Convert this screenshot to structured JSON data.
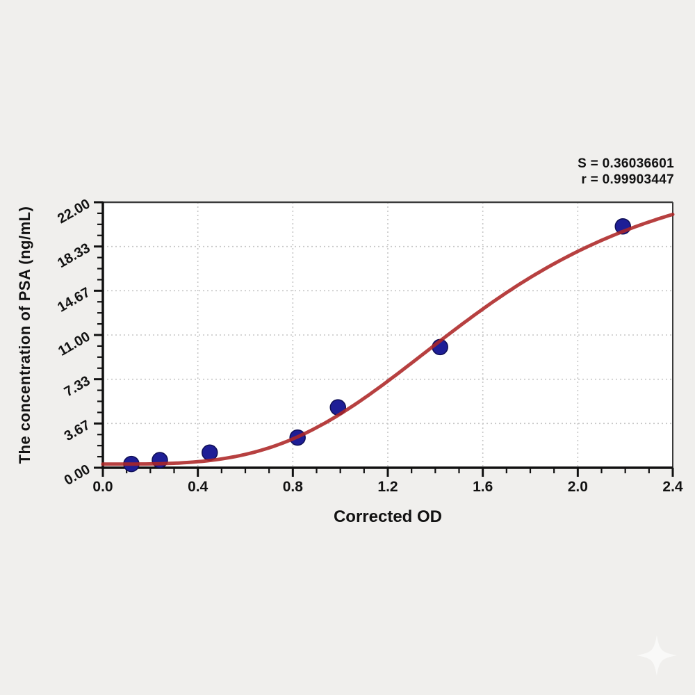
{
  "chart_data": {
    "type": "scatter",
    "title": "",
    "xlabel": "Corrected OD",
    "ylabel": "The concentration of PSA (ng/mL)",
    "xlim": [
      0.0,
      2.4
    ],
    "ylim": [
      0.0,
      22.0
    ],
    "x_tick_labels": [
      "0.0",
      "0.4",
      "0.8",
      "1.2",
      "1.6",
      "2.0",
      "2.4"
    ],
    "y_tick_labels": [
      "0.00",
      "3.67",
      "7.33",
      "11.00",
      "14.67",
      "18.33",
      "22.00"
    ],
    "minor_divisions": 4,
    "grid": {
      "style": "dotted",
      "on_major_ticks": true
    },
    "legend": "none",
    "annotations": [
      {
        "text": "S = 0.36036601"
      },
      {
        "text": "r = 0.99903447"
      }
    ],
    "series": [
      {
        "name": "standard-points",
        "type": "scatter",
        "color": "#1e1e96",
        "points": [
          [
            0.12,
            0.31
          ],
          [
            0.24,
            0.63
          ],
          [
            0.45,
            1.25
          ],
          [
            0.82,
            2.5
          ],
          [
            0.99,
            5.0
          ],
          [
            1.42,
            10.0
          ],
          [
            2.19,
            20.0
          ]
        ]
      },
      {
        "name": "fitted-curve",
        "type": "line",
        "color": "#ad2626",
        "model": "4PL",
        "params": {
          "a": 0.3,
          "b": 3.5,
          "c": 1.6,
          "d": 26.0
        },
        "x_range": [
          0.0,
          2.4
        ]
      }
    ]
  },
  "colors": {
    "background": "#f0efed",
    "plot_bg": "#ffffff",
    "grid": "#c6c6c6",
    "axis": "#111111",
    "frame": "#3a3a3a",
    "tick_label": "#121212",
    "curve": "#ad2626",
    "point": "#1e1e96",
    "point_outline": "#0e0e55",
    "watermark": "#fbfbfa"
  },
  "icons": {
    "watermark": "sparkle-icon"
  }
}
